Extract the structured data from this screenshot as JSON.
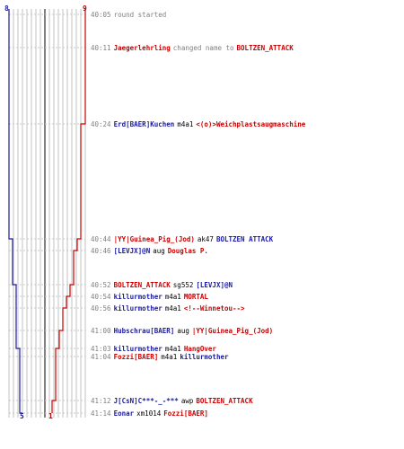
{
  "scores": {
    "blue_start": "8",
    "red_start": "9",
    "blue_end": "5",
    "red_end": "1"
  },
  "colors": {
    "blue": "#1a1aa0",
    "red": "#cc0000",
    "grey": "#808080"
  },
  "events": [
    {
      "time": "40:05",
      "parts": [
        {
          "text": "round started",
          "style": "plain"
        }
      ]
    },
    {
      "time": "40:11",
      "parts": [
        {
          "text": "Jaegerlehrling",
          "style": "red"
        },
        {
          "text": "changed name to",
          "style": "plain"
        },
        {
          "text": "BOLTZEN_ATTACK",
          "style": "red"
        }
      ]
    },
    {
      "time": "40:24",
      "parts": [
        {
          "text": "Erd[BAER]Kuchen",
          "style": "blue"
        },
        {
          "text": "m4a1",
          "style": "verb"
        },
        {
          "text": "<(o)>Weichplastsaugmaschine",
          "style": "red"
        }
      ]
    },
    {
      "time": "40:44",
      "parts": [
        {
          "text": "|YY|Guinea_Pig_(Jod)",
          "style": "red"
        },
        {
          "text": "ak47",
          "style": "verb"
        },
        {
          "text": "BOLTZEN ATTACK",
          "style": "blue"
        }
      ]
    },
    {
      "time": "40:46",
      "parts": [
        {
          "text": "[LEVJX]@N",
          "style": "blue"
        },
        {
          "text": "aug",
          "style": "verb"
        },
        {
          "text": "Douglas P.",
          "style": "red"
        }
      ]
    },
    {
      "time": "40:52",
      "parts": [
        {
          "text": "BOLTZEN_ATTACK",
          "style": "red"
        },
        {
          "text": "sg552",
          "style": "verb"
        },
        {
          "text": "[LEVJX]@N",
          "style": "blue"
        }
      ]
    },
    {
      "time": "40:54",
      "parts": [
        {
          "text": "killurmother",
          "style": "blue"
        },
        {
          "text": "m4a1",
          "style": "verb"
        },
        {
          "text": "MORTAL",
          "style": "red"
        }
      ]
    },
    {
      "time": "40:56",
      "parts": [
        {
          "text": "killurmother",
          "style": "blue"
        },
        {
          "text": "m4a1",
          "style": "verb"
        },
        {
          "text": "<!--Winnetou-->",
          "style": "red"
        }
      ]
    },
    {
      "time": "41:00",
      "parts": [
        {
          "text": "Hubschrau[BAER]",
          "style": "blue"
        },
        {
          "text": "aug",
          "style": "verb"
        },
        {
          "text": "|YY|Guinea_Pig_(Jod)",
          "style": "red"
        }
      ]
    },
    {
      "time": "41:03",
      "parts": [
        {
          "text": "killurmother",
          "style": "blue"
        },
        {
          "text": "m4a1",
          "style": "verb"
        },
        {
          "text": "HangOver",
          "style": "red"
        }
      ]
    },
    {
      "time": "41:04",
      "parts": [
        {
          "text": "Fozzi[BAER]",
          "style": "red"
        },
        {
          "text": "m4a1",
          "style": "verb"
        },
        {
          "text": "killurmother",
          "style": "blue"
        }
      ]
    },
    {
      "time": "41:12",
      "parts": [
        {
          "text": "J[CsN]C***-_-***",
          "style": "blue"
        },
        {
          "text": "awp",
          "style": "verb"
        },
        {
          "text": "BOLTZEN_ATTACK",
          "style": "red"
        }
      ]
    },
    {
      "time": "41:14",
      "parts": [
        {
          "text": "Eonar",
          "style": "blue"
        },
        {
          "text": "xm1014",
          "style": "verb"
        },
        {
          "text": "Fozzi[BAER]",
          "style": "red"
        }
      ]
    }
  ]
}
